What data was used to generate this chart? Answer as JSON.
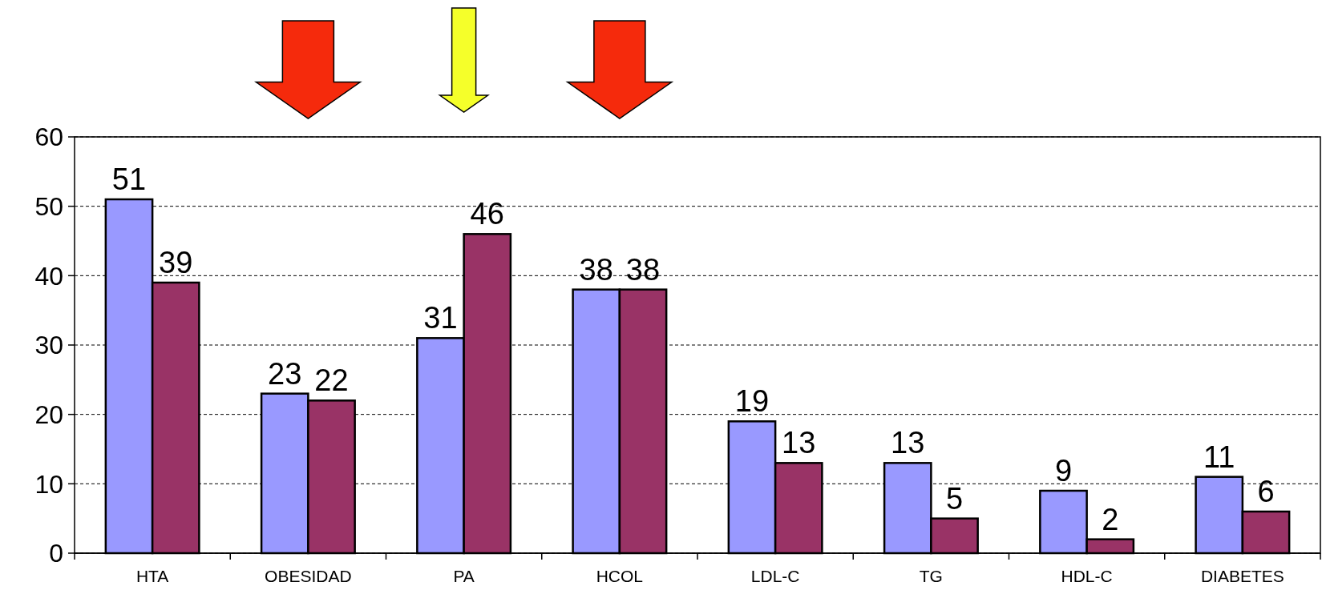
{
  "chart_data": {
    "type": "bar",
    "categories": [
      "HTA",
      "OBESIDAD",
      "PA",
      "HCOL",
      "LDL-C",
      "TG",
      "HDL-C",
      "DIABETES"
    ],
    "series": [
      {
        "color": "#9999ff",
        "values": [
          51,
          23,
          31,
          38,
          19,
          13,
          9,
          11
        ]
      },
      {
        "color": "#993366",
        "values": [
          39,
          22,
          46,
          38,
          13,
          5,
          2,
          6
        ]
      }
    ],
    "ylim": [
      0,
      60
    ],
    "yticks": [
      0,
      10,
      20,
      30,
      40,
      50,
      60
    ],
    "grid": "y",
    "data_labels": true
  }
}
